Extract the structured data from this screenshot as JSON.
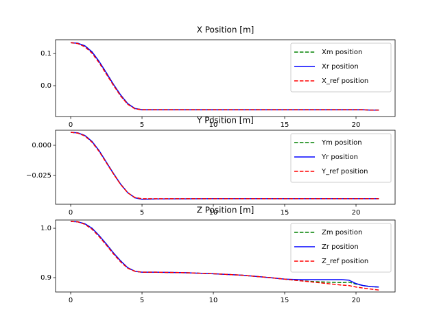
{
  "chart_data": [
    {
      "type": "line",
      "title": "X Position [m]",
      "x": [
        0,
        0.5,
        1,
        1.5,
        2,
        2.5,
        3,
        3.5,
        4,
        4.5,
        5,
        6,
        8,
        10,
        12,
        14,
        15,
        16,
        17,
        18,
        19,
        19.5,
        20,
        20.5,
        21,
        21.6
      ],
      "series": [
        {
          "name": "Xm position",
          "color": "green",
          "style": "dashed",
          "values": [
            0.134,
            0.132,
            0.124,
            0.105,
            0.075,
            0.04,
            0.004,
            -0.029,
            -0.056,
            -0.071,
            -0.075,
            -0.075,
            -0.075,
            -0.075,
            -0.075,
            -0.075,
            -0.075,
            -0.075,
            -0.075,
            -0.075,
            -0.075,
            -0.075,
            -0.075,
            -0.075,
            -0.076,
            -0.076
          ]
        },
        {
          "name": "Xr position",
          "color": "blue",
          "style": "solid",
          "values": [
            0.134,
            0.132,
            0.124,
            0.105,
            0.075,
            0.04,
            0.004,
            -0.029,
            -0.056,
            -0.071,
            -0.075,
            -0.075,
            -0.075,
            -0.075,
            -0.075,
            -0.075,
            -0.075,
            -0.075,
            -0.075,
            -0.075,
            -0.075,
            -0.075,
            -0.075,
            -0.075,
            -0.076,
            -0.076
          ]
        },
        {
          "name": "X_ref position",
          "color": "red",
          "style": "dashed",
          "values": [
            0.134,
            0.131,
            0.121,
            0.101,
            0.071,
            0.036,
            0.001,
            -0.032,
            -0.058,
            -0.072,
            -0.075,
            -0.075,
            -0.075,
            -0.075,
            -0.075,
            -0.075,
            -0.075,
            -0.075,
            -0.075,
            -0.075,
            -0.075,
            -0.075,
            -0.075,
            -0.075,
            -0.076,
            -0.076
          ]
        }
      ],
      "xlim": [
        -1.06,
        22.74
      ],
      "xticks": [
        0,
        5,
        10,
        15,
        20
      ],
      "ylim": [
        -0.096,
        0.143
      ],
      "yticks": [
        {
          "value": 0,
          "label": "0.0"
        },
        {
          "value": 0.1,
          "label": "0.1"
        }
      ],
      "legend": "upper right"
    },
    {
      "type": "line",
      "title": "Y Position [m]",
      "x": [
        0,
        0.5,
        1,
        1.5,
        2,
        2.5,
        3,
        3.5,
        4,
        4.5,
        5,
        6,
        8,
        10,
        12,
        14,
        15,
        16,
        17,
        18,
        19,
        19.5,
        20,
        20.5,
        21,
        21.6
      ],
      "series": [
        {
          "name": "Ym position",
          "color": "green",
          "style": "dashed",
          "values": [
            0.0108,
            0.0103,
            0.0081,
            0.0031,
            -0.0046,
            -0.014,
            -0.0234,
            -0.0322,
            -0.0393,
            -0.0435,
            -0.0448,
            -0.0445,
            -0.0444,
            -0.0443,
            -0.0443,
            -0.0443,
            -0.0443,
            -0.0443,
            -0.0443,
            -0.0443,
            -0.0443,
            -0.0443,
            -0.0443,
            -0.0443,
            -0.0443,
            -0.0443
          ]
        },
        {
          "name": "Yr position",
          "color": "blue",
          "style": "solid",
          "values": [
            0.0108,
            0.0103,
            0.0081,
            0.0031,
            -0.0046,
            -0.014,
            -0.0234,
            -0.0322,
            -0.0393,
            -0.0435,
            -0.0448,
            -0.0445,
            -0.0444,
            -0.0443,
            -0.0443,
            -0.0443,
            -0.0443,
            -0.0443,
            -0.0443,
            -0.0443,
            -0.0443,
            -0.0443,
            -0.0443,
            -0.0443,
            -0.0443,
            -0.0443
          ]
        },
        {
          "name": "Y_ref position",
          "color": "red",
          "style": "dashed",
          "values": [
            0.0108,
            0.0101,
            0.0077,
            0.0025,
            -0.0052,
            -0.0145,
            -0.0238,
            -0.0325,
            -0.0394,
            -0.0433,
            -0.0443,
            -0.0443,
            -0.0443,
            -0.0443,
            -0.0443,
            -0.0443,
            -0.0443,
            -0.0443,
            -0.0443,
            -0.0443,
            -0.0443,
            -0.0443,
            -0.0443,
            -0.0443,
            -0.0443,
            -0.0443
          ]
        }
      ],
      "xlim": [
        -1.06,
        22.74
      ],
      "xticks": [
        0,
        5,
        10,
        15,
        20
      ],
      "ylim": [
        -0.0489,
        0.0125
      ],
      "yticks": [
        {
          "value": 0,
          "label": "0.000"
        },
        {
          "value": -0.025,
          "label": "−0.025"
        }
      ],
      "legend": "upper right"
    },
    {
      "type": "line",
      "title": "Z Position [m]",
      "x": [
        0,
        0.5,
        1,
        1.5,
        2,
        2.5,
        3,
        3.5,
        4,
        4.5,
        5,
        6,
        8,
        10,
        12,
        14,
        15,
        16,
        17,
        18,
        19,
        19.5,
        20,
        20.5,
        21,
        21.6
      ],
      "series": [
        {
          "name": "Zm position",
          "color": "green",
          "style": "dashed",
          "values": [
            1.014,
            1.013,
            1.009,
            1.0,
            0.985,
            0.968,
            0.95,
            0.934,
            0.92,
            0.913,
            0.911,
            0.911,
            0.91,
            0.908,
            0.905,
            0.9,
            0.897,
            0.894,
            0.892,
            0.891,
            0.89,
            0.891,
            0.887,
            0.884,
            0.882,
            0.881
          ]
        },
        {
          "name": "Zr position",
          "color": "blue",
          "style": "solid",
          "values": [
            1.014,
            1.013,
            1.009,
            1.0,
            0.985,
            0.968,
            0.95,
            0.934,
            0.92,
            0.913,
            0.911,
            0.911,
            0.91,
            0.908,
            0.905,
            0.9,
            0.897,
            0.896,
            0.896,
            0.896,
            0.896,
            0.895,
            0.888,
            0.884,
            0.882,
            0.881
          ]
        },
        {
          "name": "Z_ref position",
          "color": "red",
          "style": "dashed",
          "values": [
            1.014,
            1.013,
            1.008,
            0.998,
            0.983,
            0.966,
            0.948,
            0.932,
            0.919,
            0.913,
            0.911,
            0.911,
            0.91,
            0.908,
            0.905,
            0.9,
            0.897,
            0.894,
            0.891,
            0.888,
            0.885,
            0.884,
            0.881,
            0.879,
            0.877,
            0.875
          ]
        }
      ],
      "xlim": [
        -1.06,
        22.74
      ],
      "xticks": [
        0,
        5,
        10,
        15,
        20
      ],
      "ylim": [
        0.871,
        1.0167
      ],
      "yticks": [
        {
          "value": 0.9,
          "label": "0.9"
        },
        {
          "value": 1,
          "label": "1.0"
        }
      ],
      "legend": "upper right"
    }
  ]
}
